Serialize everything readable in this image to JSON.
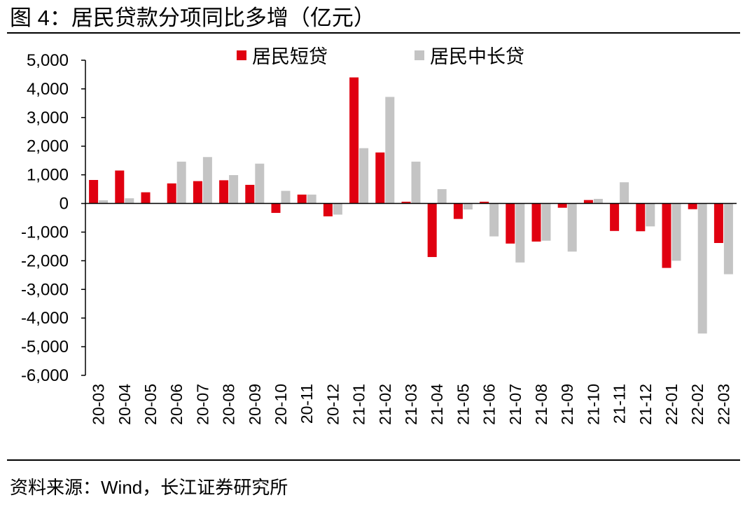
{
  "header": {
    "title": "图 4：居民贷款分项同比多增（亿元）"
  },
  "footer": {
    "source": "资料来源：Wind，长江证券研究所"
  },
  "colors": {
    "short": "#e00010",
    "long": "#c4c4c4",
    "axis": "#000000"
  },
  "chart_data": {
    "type": "bar",
    "title": "居民贷款分项同比多增（亿元）",
    "xlabel": "",
    "ylabel": "",
    "ylim": [
      -6000,
      5000
    ],
    "yticks": [
      5000,
      4000,
      3000,
      2000,
      1000,
      0,
      -1000,
      -2000,
      -3000,
      -4000,
      -5000,
      -6000
    ],
    "ytick_labels": [
      "5,000",
      "4,000",
      "3,000",
      "2,000",
      "1,000",
      "0",
      "-1,000",
      "-2,000",
      "-3,000",
      "-4,000",
      "-5,000",
      "-6,000"
    ],
    "grid": false,
    "legend_position": "top-center",
    "categories": [
      "20-03",
      "20-04",
      "20-05",
      "20-06",
      "20-07",
      "20-08",
      "20-09",
      "20-10",
      "20-11",
      "20-12",
      "21-01",
      "21-02",
      "21-03",
      "21-04",
      "21-05",
      "21-06",
      "21-07",
      "21-08",
      "21-09",
      "21-10",
      "21-11",
      "21-12",
      "22-01",
      "22-02",
      "22-03"
    ],
    "series": [
      {
        "name": "居民短贷",
        "color": "#e00010",
        "values": [
          820,
          1150,
          390,
          700,
          780,
          810,
          650,
          -330,
          310,
          -450,
          4400,
          1780,
          60,
          -1870,
          -540,
          60,
          -1400,
          -1330,
          -150,
          120,
          -960,
          -970,
          -2250,
          -200,
          -1380
        ]
      },
      {
        "name": "居民中长贷",
        "color": "#c4c4c4",
        "values": [
          110,
          180,
          20,
          1460,
          1620,
          990,
          1390,
          440,
          310,
          -390,
          1930,
          3720,
          1460,
          500,
          -210,
          -1150,
          -2060,
          -1300,
          -1680,
          160,
          740,
          -800,
          -2000,
          -4540,
          -2470
        ]
      }
    ]
  }
}
